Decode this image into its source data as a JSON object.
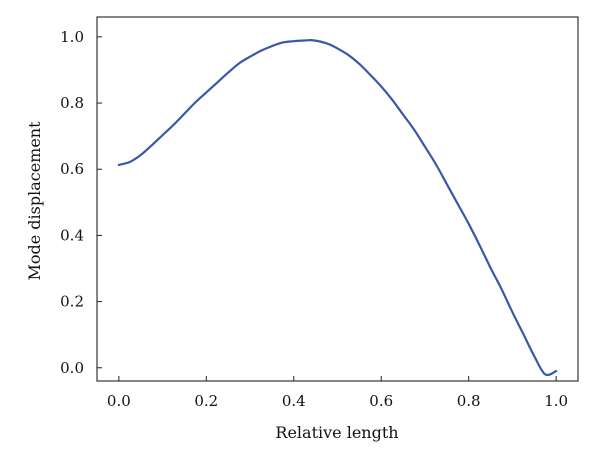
{
  "chart_data": {
    "type": "line",
    "title": "",
    "xlabel": "Relative length",
    "ylabel": "Mode displacement",
    "xlim": [
      -0.05,
      1.05
    ],
    "ylim": [
      -0.04,
      1.06
    ],
    "xticks": [
      "0.0",
      "0.2",
      "0.4",
      "0.6",
      "0.8",
      "1.0"
    ],
    "yticks": [
      "0.0",
      "0.2",
      "0.4",
      "0.6",
      "0.8",
      "1.0"
    ],
    "grid": false,
    "legend": "none",
    "series": [
      {
        "color": "#3a58a8",
        "x": [
          0.0,
          0.025,
          0.05,
          0.075,
          0.1,
          0.125,
          0.15,
          0.175,
          0.2,
          0.225,
          0.25,
          0.275,
          0.3,
          0.325,
          0.35,
          0.375,
          0.4,
          0.425,
          0.44,
          0.46,
          0.48,
          0.5,
          0.525,
          0.55,
          0.575,
          0.6,
          0.625,
          0.65,
          0.675,
          0.7,
          0.725,
          0.75,
          0.775,
          0.8,
          0.825,
          0.85,
          0.875,
          0.9,
          0.925,
          0.95,
          0.975,
          1.0
        ],
        "y": [
          0.613,
          0.622,
          0.643,
          0.672,
          0.703,
          0.734,
          0.768,
          0.802,
          0.832,
          0.862,
          0.892,
          0.92,
          0.94,
          0.958,
          0.972,
          0.983,
          0.987,
          0.989,
          0.99,
          0.986,
          0.978,
          0.965,
          0.945,
          0.918,
          0.885,
          0.85,
          0.81,
          0.765,
          0.72,
          0.668,
          0.615,
          0.555,
          0.495,
          0.435,
          0.37,
          0.302,
          0.238,
          0.168,
          0.102,
          0.035,
          -0.02,
          -0.01
        ]
      }
    ]
  }
}
